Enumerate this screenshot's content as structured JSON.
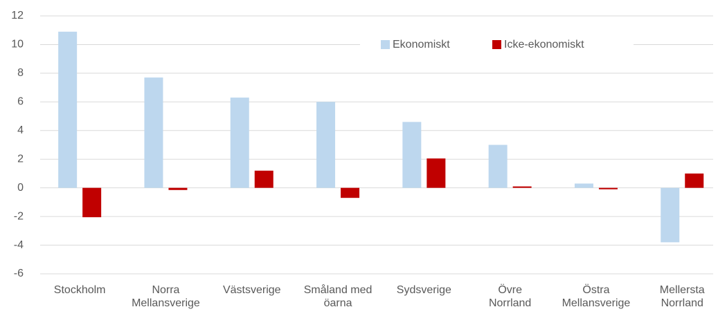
{
  "chart_data": {
    "type": "bar",
    "categories": [
      "Stockholm",
      "Norra\nMellansverige",
      "Västsverige",
      "Småland med\nöarna",
      "Sydsverige",
      "Övre\nNorrland",
      "Östra\nMellansverige",
      "Mellersta\nNorrland"
    ],
    "series": [
      {
        "name": "Ekonomiskt",
        "color": "#bdd7ee",
        "values": [
          10.9,
          7.7,
          6.3,
          6.0,
          4.6,
          3.0,
          0.3,
          -3.8
        ]
      },
      {
        "name": "Icke-ekonomiskt",
        "color": "#c00000",
        "values": [
          -2.05,
          -0.15,
          1.2,
          -0.7,
          2.05,
          0.1,
          -0.1,
          1.0
        ]
      }
    ],
    "ylim": [
      -6,
      12
    ],
    "yticks": [
      -6,
      -4,
      -2,
      0,
      2,
      4,
      6,
      8,
      10,
      12
    ],
    "grid": true,
    "legend": "top"
  }
}
